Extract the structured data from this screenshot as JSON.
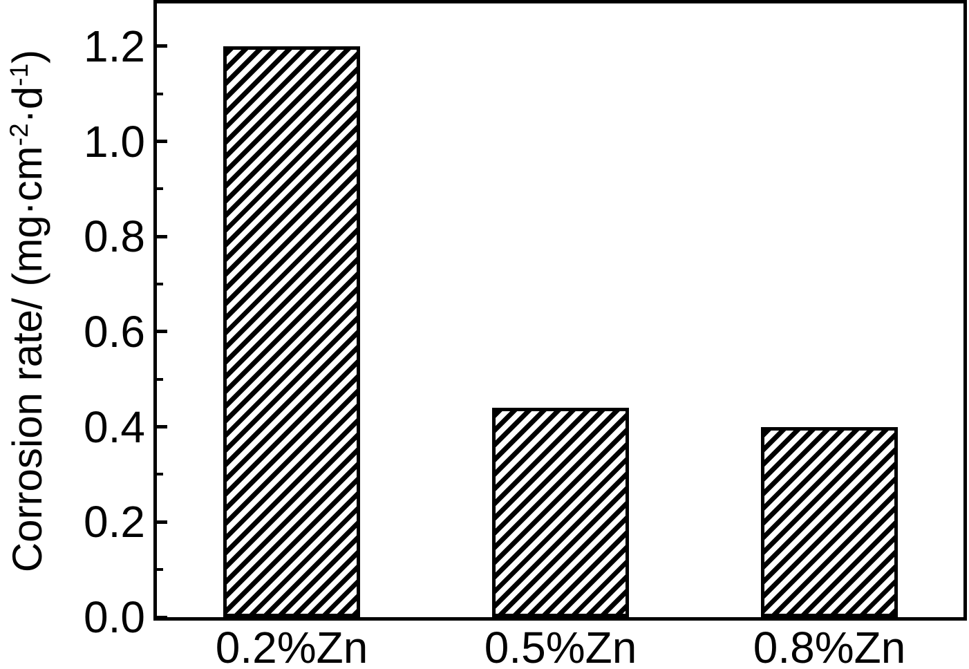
{
  "figure": {
    "background_color": "#ffffff",
    "frame_color": "#000000",
    "text_color": "#000000"
  },
  "chart_data": {
    "type": "bar",
    "title": "",
    "xlabel": "",
    "ylabel": "Corrosion rate/ (mg·cm⁻²·d⁻¹)",
    "ylabel_runs": [
      {
        "text": "Corrosion rate/ (mg·cm"
      },
      {
        "text": "-2",
        "sup": true
      },
      {
        "text": "·d"
      },
      {
        "text": "-1",
        "sup": true
      },
      {
        "text": ")"
      }
    ],
    "categories": [
      "0.2%Zn",
      "0.5%Zn",
      "0.8%Zn"
    ],
    "values": [
      1.2,
      0.44,
      0.4
    ],
    "ylim": [
      0,
      1.29
    ],
    "y_major_ticks": [
      0.0,
      0.2,
      0.4,
      0.6,
      0.8,
      1.0,
      1.2
    ],
    "y_tick_labels": [
      "0.0",
      "0.2",
      "0.4",
      "0.6",
      "0.8",
      "1.0",
      "1.2"
    ],
    "y_minor_ticks": [
      0.1,
      0.3,
      0.5,
      0.7,
      0.9,
      1.1
    ],
    "grid": false,
    "legend": false,
    "bar_style": {
      "fill": "diagonal-hatch-forward-slash",
      "hatch_color": "#000000",
      "hatch_background": "#ffffff",
      "edge_color": "#000000"
    }
  }
}
